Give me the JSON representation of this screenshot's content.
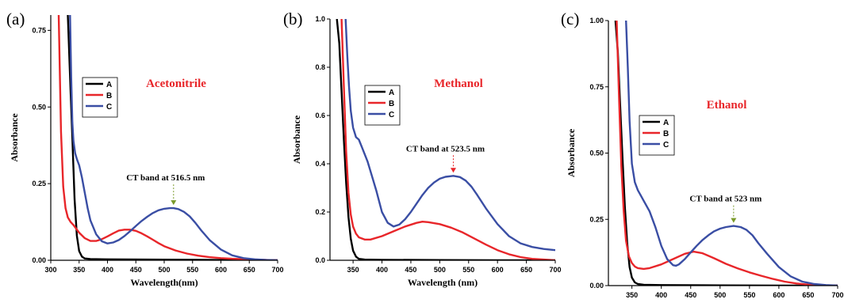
{
  "chart_data": [
    {
      "type": "line",
      "panel_label": "(a)",
      "solvent_label": "Acetonitrile",
      "xlabel": "Wavelength(nm)",
      "ylabel": "Absorbance",
      "xlim": [
        300,
        700
      ],
      "ylim": [
        0,
        0.8
      ],
      "xticks": [
        300,
        350,
        400,
        450,
        500,
        550,
        600,
        650,
        700
      ],
      "yticks": [
        0.0,
        0.25,
        0.5,
        0.75
      ],
      "ytick_labels": [
        "0.00",
        "0.25",
        "0.50",
        "0.75"
      ],
      "annotation": {
        "text": "CT band at 516.5 nm",
        "x": 516.5,
        "y": 0.17
      },
      "legend_position": "top-left",
      "series": [
        {
          "name": "A",
          "color": "#000000",
          "x": [
            330,
            334,
            338,
            342,
            346,
            350,
            355,
            360,
            370,
            400,
            500,
            600,
            700
          ],
          "y": [
            0.8,
            0.6,
            0.4,
            0.2,
            0.08,
            0.03,
            0.012,
            0.006,
            0.004,
            0.003,
            0.002,
            0.001,
            0.0
          ]
        },
        {
          "name": "B",
          "color": "#e8262a",
          "x": [
            314,
            318,
            322,
            326,
            330,
            335,
            340,
            350,
            360,
            370,
            380,
            390,
            400,
            410,
            420,
            430,
            440,
            450,
            460,
            470,
            480,
            490,
            500,
            520,
            540,
            560,
            580,
            600,
            620,
            650,
            680,
            700
          ],
          "y": [
            0.8,
            0.42,
            0.24,
            0.17,
            0.14,
            0.125,
            0.115,
            0.09,
            0.072,
            0.063,
            0.063,
            0.069,
            0.078,
            0.088,
            0.097,
            0.1,
            0.1,
            0.096,
            0.088,
            0.078,
            0.067,
            0.056,
            0.046,
            0.032,
            0.022,
            0.015,
            0.01,
            0.007,
            0.005,
            0.003,
            0.001,
            0.0
          ]
        },
        {
          "name": "C",
          "color": "#3a4ea4",
          "x": [
            334,
            336,
            338,
            340,
            343,
            346,
            350,
            355,
            360,
            365,
            370,
            380,
            390,
            400,
            410,
            420,
            430,
            440,
            450,
            460,
            470,
            480,
            490,
            500,
            510,
            516.5,
            525,
            535,
            545,
            555,
            565,
            580,
            600,
            620,
            640,
            660,
            680,
            700
          ],
          "y": [
            0.8,
            0.6,
            0.45,
            0.39,
            0.35,
            0.33,
            0.31,
            0.27,
            0.22,
            0.17,
            0.13,
            0.085,
            0.062,
            0.055,
            0.058,
            0.066,
            0.079,
            0.095,
            0.112,
            0.128,
            0.142,
            0.154,
            0.163,
            0.168,
            0.17,
            0.17,
            0.167,
            0.158,
            0.143,
            0.122,
            0.098,
            0.066,
            0.035,
            0.016,
            0.007,
            0.003,
            0.001,
            0.0
          ]
        }
      ]
    },
    {
      "type": "line",
      "panel_label": "(b)",
      "solvent_label": "Methanol",
      "xlabel": "Wavelength (nm)",
      "ylabel": "Absorbance",
      "xlim": [
        310,
        700
      ],
      "ylim": [
        0,
        1.0
      ],
      "xticks": [
        350,
        400,
        450,
        500,
        550,
        600,
        650,
        700
      ],
      "yticks": [
        0.0,
        0.2,
        0.4,
        0.6,
        0.8,
        1.0
      ],
      "ytick_labels": [
        "0.0",
        "0.2",
        "0.4",
        "0.6",
        "0.8",
        "1.0"
      ],
      "annotation": {
        "text": "CT band at 523.5 nm",
        "x": 523.5,
        "y": 0.35
      },
      "legend_position": "top-left",
      "series": [
        {
          "name": "A",
          "color": "#000000",
          "x": [
            322,
            326,
            330,
            334,
            338,
            342,
            346,
            350,
            355,
            360,
            370,
            400,
            500,
            600,
            700
          ],
          "y": [
            1.0,
            0.9,
            0.7,
            0.5,
            0.32,
            0.18,
            0.09,
            0.04,
            0.015,
            0.006,
            0.003,
            0.002,
            0.001,
            0.0,
            0.0
          ]
        },
        {
          "name": "B",
          "color": "#e8262a",
          "x": [
            330,
            334,
            338,
            342,
            346,
            350,
            355,
            360,
            370,
            380,
            400,
            420,
            440,
            460,
            470,
            480,
            500,
            520,
            540,
            560,
            580,
            600,
            620,
            640,
            660,
            680,
            700
          ],
          "y": [
            1.0,
            0.72,
            0.45,
            0.28,
            0.19,
            0.14,
            0.11,
            0.095,
            0.086,
            0.086,
            0.1,
            0.12,
            0.14,
            0.155,
            0.16,
            0.158,
            0.15,
            0.135,
            0.115,
            0.09,
            0.065,
            0.042,
            0.025,
            0.013,
            0.006,
            0.003,
            0.0
          ]
        },
        {
          "name": "C",
          "color": "#3a4ea4",
          "x": [
            337,
            340,
            343,
            346,
            350,
            355,
            360,
            365,
            370,
            375,
            380,
            390,
            400,
            410,
            420,
            430,
            440,
            450,
            460,
            470,
            480,
            490,
            500,
            510,
            523.5,
            535,
            545,
            555,
            565,
            580,
            600,
            620,
            640,
            660,
            680,
            700
          ],
          "y": [
            1.0,
            0.85,
            0.72,
            0.62,
            0.55,
            0.51,
            0.5,
            0.47,
            0.44,
            0.41,
            0.37,
            0.29,
            0.2,
            0.155,
            0.14,
            0.148,
            0.17,
            0.2,
            0.235,
            0.27,
            0.3,
            0.322,
            0.338,
            0.346,
            0.35,
            0.345,
            0.33,
            0.305,
            0.27,
            0.215,
            0.15,
            0.1,
            0.07,
            0.055,
            0.047,
            0.042
          ]
        }
      ]
    },
    {
      "type": "line",
      "panel_label": "(c)",
      "solvent_label": "Ethanol",
      "xlabel": "Wavelength (nm)",
      "ylabel": "Absorbance",
      "xlim": [
        310,
        700
      ],
      "ylim": [
        0,
        1.0
      ],
      "xticks": [
        350,
        400,
        450,
        500,
        550,
        600,
        650,
        700
      ],
      "yticks": [
        0.0,
        0.25,
        0.5,
        0.75,
        1.0
      ],
      "ytick_labels": [
        "0.00",
        "0.25",
        "0.50",
        "0.75",
        "1.00"
      ],
      "annotation": {
        "text": "CT band at 523 nm",
        "x": 523,
        "y": 0.225
      },
      "legend_position": "center-left",
      "series": [
        {
          "name": "A",
          "color": "#000000",
          "x": [
            322,
            326,
            330,
            334,
            338,
            342,
            346,
            350,
            355,
            360,
            370,
            400,
            500,
            600,
            700
          ],
          "y": [
            1.0,
            0.88,
            0.68,
            0.48,
            0.3,
            0.16,
            0.07,
            0.03,
            0.012,
            0.006,
            0.003,
            0.002,
            0.001,
            0.0,
            0.0
          ]
        },
        {
          "name": "B",
          "color": "#e8262a",
          "x": [
            324,
            328,
            332,
            336,
            340,
            345,
            350,
            355,
            360,
            370,
            380,
            400,
            420,
            440,
            455,
            470,
            490,
            510,
            530,
            550,
            570,
            590,
            610,
            630,
            650,
            680,
            700
          ],
          "y": [
            1.0,
            0.72,
            0.45,
            0.28,
            0.17,
            0.11,
            0.085,
            0.072,
            0.066,
            0.063,
            0.066,
            0.08,
            0.1,
            0.12,
            0.128,
            0.122,
            0.103,
            0.082,
            0.065,
            0.05,
            0.037,
            0.025,
            0.015,
            0.008,
            0.004,
            0.001,
            0.0
          ]
        },
        {
          "name": "C",
          "color": "#3a4ea4",
          "x": [
            340,
            343,
            346,
            350,
            355,
            360,
            365,
            370,
            380,
            390,
            400,
            410,
            420,
            425,
            430,
            440,
            450,
            460,
            470,
            480,
            490,
            500,
            510,
            523,
            535,
            545,
            555,
            565,
            580,
            600,
            620,
            640,
            660,
            680,
            700
          ],
          "y": [
            1.0,
            0.82,
            0.62,
            0.46,
            0.39,
            0.36,
            0.34,
            0.32,
            0.28,
            0.22,
            0.15,
            0.1,
            0.077,
            0.075,
            0.08,
            0.1,
            0.125,
            0.15,
            0.172,
            0.19,
            0.205,
            0.215,
            0.221,
            0.225,
            0.221,
            0.21,
            0.19,
            0.16,
            0.12,
            0.07,
            0.035,
            0.015,
            0.006,
            0.002,
            0.0
          ]
        }
      ]
    }
  ]
}
